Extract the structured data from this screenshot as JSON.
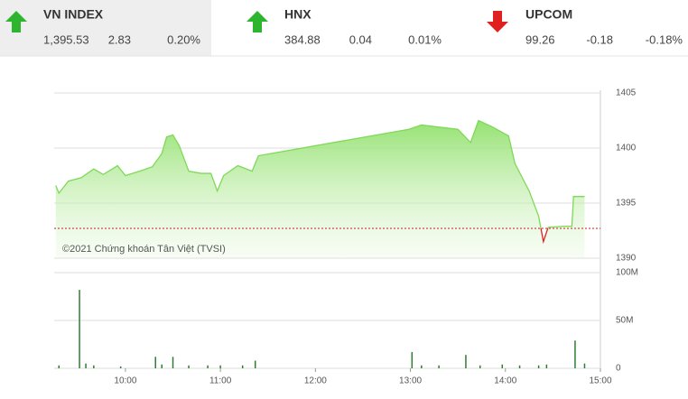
{
  "header": {
    "tickers": [
      {
        "name": "VN INDEX",
        "value": "1,395.53",
        "change": "2.83",
        "percent": "0.20%"
      },
      {
        "name": "HNX",
        "value": "384.88",
        "change": "0.04",
        "percent": "0.01%"
      },
      {
        "name": "UPCOM",
        "value": "99.26",
        "change": "-0.18",
        "percent": "-0.18%"
      }
    ]
  },
  "chart_data": [
    {
      "type": "area",
      "watermark": "©2021 Chứng khoán Tân Việt (TVSI)",
      "x": [
        556,
        558,
        564,
        572,
        580,
        586,
        595,
        600,
        609,
        617,
        623,
        626,
        630,
        634,
        640,
        648,
        654,
        658,
        662,
        671,
        680,
        684,
        779,
        787,
        798,
        810,
        818,
        823,
        832,
        842,
        846,
        855,
        861,
        864,
        867,
        877,
        882,
        883,
        890
      ],
      "values": [
        1396.6,
        1395.9,
        1397,
        1397.3,
        1398.1,
        1397.6,
        1398.4,
        1397.5,
        1397.9,
        1398.3,
        1399.5,
        1401,
        1401.2,
        1400.2,
        1397.9,
        1397.7,
        1397.7,
        1396.1,
        1397.5,
        1398.4,
        1397.9,
        1399.3,
        1401.7,
        1402.1,
        1401.9,
        1401.7,
        1400.5,
        1402.5,
        1401.9,
        1401.1,
        1398.6,
        1396.1,
        1393.8,
        1391.5,
        1392.8,
        1392.9,
        1392.9,
        1395.6,
        1395.6
      ],
      "color": "#7ed957",
      "down_color": "#e0201f",
      "reference": 1392.7,
      "xlim": [
        555,
        900
      ],
      "ylim": [
        1390,
        1405
      ],
      "yticks": [
        1390,
        1395,
        1400,
        1405
      ],
      "grid": true
    },
    {
      "type": "bar",
      "x": [
        558,
        571,
        575,
        580,
        597,
        619,
        623,
        630,
        640,
        652,
        660,
        674,
        682,
        781,
        787,
        798,
        815,
        824,
        838,
        849,
        861,
        866,
        884,
        890
      ],
      "values": [
        3,
        82,
        5,
        3,
        2,
        12,
        4,
        12,
        3,
        3,
        3,
        3,
        8,
        17,
        3,
        3,
        14,
        3,
        4,
        3,
        3,
        4,
        29,
        5
      ],
      "color": "#2e7d32",
      "xlim": [
        555,
        900
      ],
      "xticks": [
        {
          "value": 600,
          "label": "10:00"
        },
        {
          "value": 660,
          "label": "11:00"
        },
        {
          "value": 720,
          "label": "12:00"
        },
        {
          "value": 780,
          "label": "13:00"
        },
        {
          "value": 840,
          "label": "14:00"
        },
        {
          "value": 900,
          "label": "15:00"
        }
      ],
      "ylim": [
        0,
        100
      ],
      "yticks": [
        0,
        {
          "value": 50,
          "label": "50M"
        },
        {
          "value": 100,
          "label": "100M"
        }
      ],
      "grid": true
    }
  ]
}
